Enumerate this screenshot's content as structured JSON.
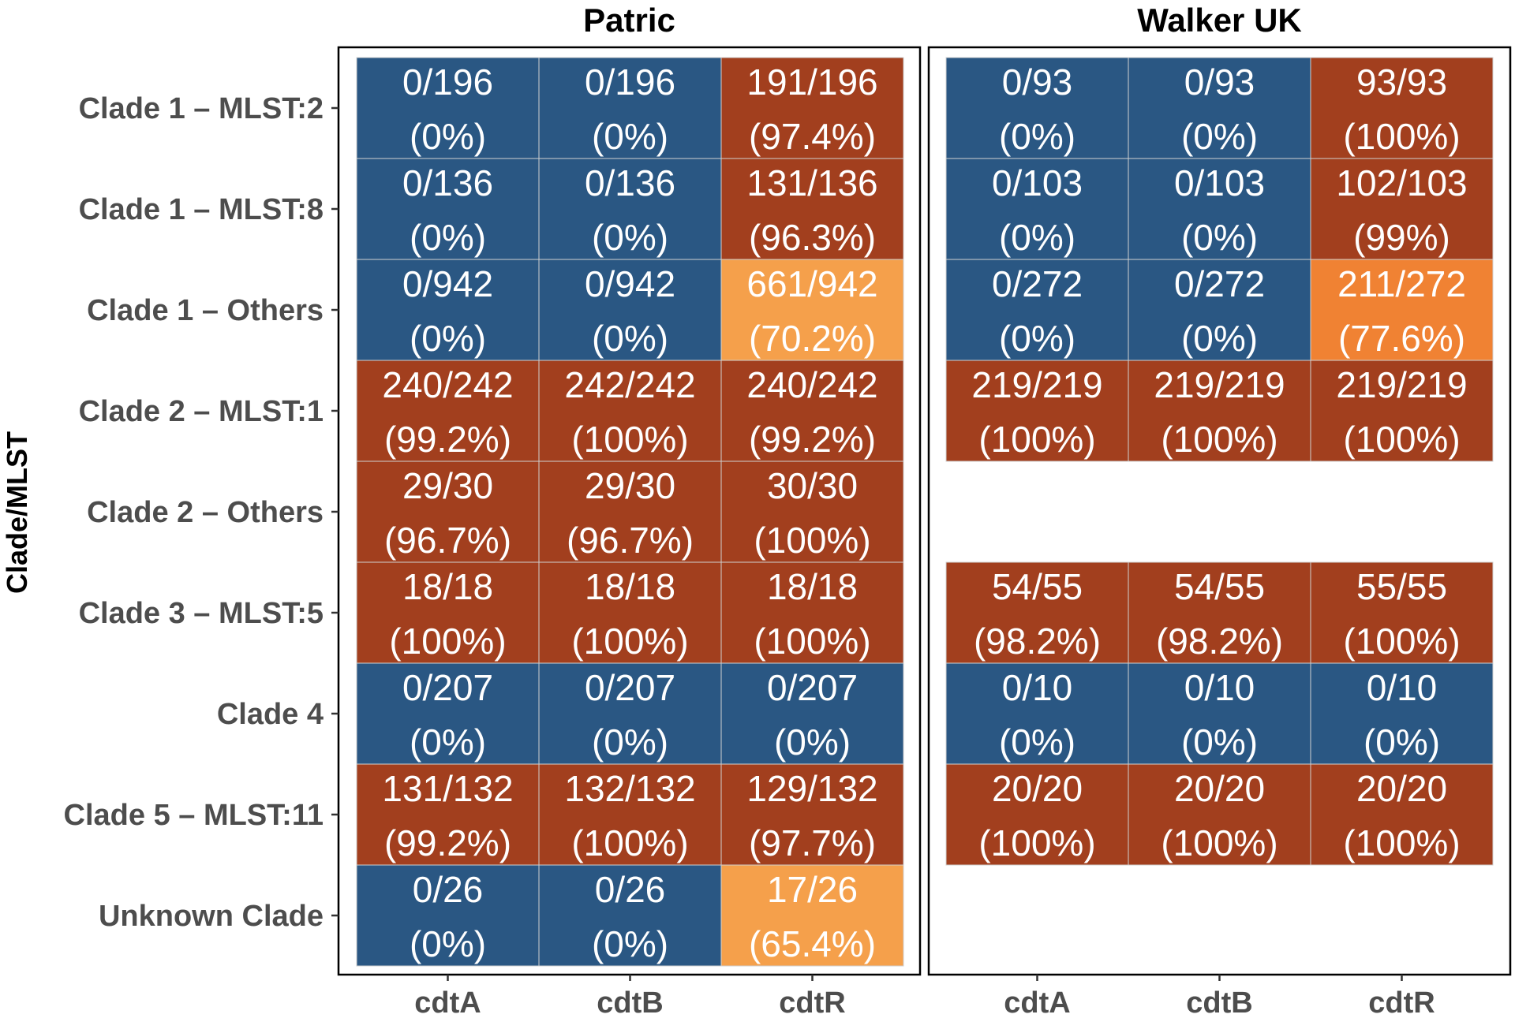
{
  "chart_data": {
    "type": "heatmap",
    "ylabel": "Clade/MLST",
    "xlabel": "",
    "rows": [
      "Clade 1 – MLST:2",
      "Clade 1 – MLST:8",
      "Clade 1 – Others",
      "Clade 2 – MLST:1",
      "Clade 2 – Others",
      "Clade 3 – MLST:5",
      "Clade 4",
      "Clade 5 – MLST:11",
      "Unknown Clade"
    ],
    "columns": [
      "cdtA",
      "cdtB",
      "cdtR"
    ],
    "colors": {
      "zero": "#2a5783",
      "high": "#a23f1e",
      "mid": "#f08233",
      "low": "#f5a04b",
      "gridline": "#d0d0d0",
      "panel_border": "#000000"
    },
    "facets": [
      {
        "title": "Patric",
        "cells": [
          [
            {
              "count": "0/196",
              "pct": "(0%)",
              "value": 0
            },
            {
              "count": "0/196",
              "pct": "(0%)",
              "value": 0
            },
            {
              "count": "191/196",
              "pct": "(97.4%)",
              "value": 97.4
            }
          ],
          [
            {
              "count": "0/136",
              "pct": "(0%)",
              "value": 0
            },
            {
              "count": "0/136",
              "pct": "(0%)",
              "value": 0
            },
            {
              "count": "131/136",
              "pct": "(96.3%)",
              "value": 96.3
            }
          ],
          [
            {
              "count": "0/942",
              "pct": "(0%)",
              "value": 0
            },
            {
              "count": "0/942",
              "pct": "(0%)",
              "value": 0
            },
            {
              "count": "661/942",
              "pct": "(70.2%)",
              "value": 70.2
            }
          ],
          [
            {
              "count": "240/242",
              "pct": "(99.2%)",
              "value": 99.2
            },
            {
              "count": "242/242",
              "pct": "(100%)",
              "value": 100
            },
            {
              "count": "240/242",
              "pct": "(99.2%)",
              "value": 99.2
            }
          ],
          [
            {
              "count": "29/30",
              "pct": "(96.7%)",
              "value": 96.7
            },
            {
              "count": "29/30",
              "pct": "(96.7%)",
              "value": 96.7
            },
            {
              "count": "30/30",
              "pct": "(100%)",
              "value": 100
            }
          ],
          [
            {
              "count": "18/18",
              "pct": "(100%)",
              "value": 100
            },
            {
              "count": "18/18",
              "pct": "(100%)",
              "value": 100
            },
            {
              "count": "18/18",
              "pct": "(100%)",
              "value": 100
            }
          ],
          [
            {
              "count": "0/207",
              "pct": "(0%)",
              "value": 0
            },
            {
              "count": "0/207",
              "pct": "(0%)",
              "value": 0
            },
            {
              "count": "0/207",
              "pct": "(0%)",
              "value": 0
            }
          ],
          [
            {
              "count": "131/132",
              "pct": "(99.2%)",
              "value": 99.2
            },
            {
              "count": "132/132",
              "pct": "(100%)",
              "value": 100
            },
            {
              "count": "129/132",
              "pct": "(97.7%)",
              "value": 97.7
            }
          ],
          [
            {
              "count": "0/26",
              "pct": "(0%)",
              "value": 0
            },
            {
              "count": "0/26",
              "pct": "(0%)",
              "value": 0
            },
            {
              "count": "17/26",
              "pct": "(65.4%)",
              "value": 65.4
            }
          ]
        ]
      },
      {
        "title": "Walker UK",
        "cells": [
          [
            {
              "count": "0/93",
              "pct": "(0%)",
              "value": 0
            },
            {
              "count": "0/93",
              "pct": "(0%)",
              "value": 0
            },
            {
              "count": "93/93",
              "pct": "(100%)",
              "value": 100
            }
          ],
          [
            {
              "count": "0/103",
              "pct": "(0%)",
              "value": 0
            },
            {
              "count": "0/103",
              "pct": "(0%)",
              "value": 0
            },
            {
              "count": "102/103",
              "pct": "(99%)",
              "value": 99
            }
          ],
          [
            {
              "count": "0/272",
              "pct": "(0%)",
              "value": 0
            },
            {
              "count": "0/272",
              "pct": "(0%)",
              "value": 0
            },
            {
              "count": "211/272",
              "pct": "(77.6%)",
              "value": 77.6
            }
          ],
          [
            {
              "count": "219/219",
              "pct": "(100%)",
              "value": 100
            },
            {
              "count": "219/219",
              "pct": "(100%)",
              "value": 100
            },
            {
              "count": "219/219",
              "pct": "(100%)",
              "value": 100
            }
          ],
          null,
          [
            {
              "count": "54/55",
              "pct": "(98.2%)",
              "value": 98.2
            },
            {
              "count": "54/55",
              "pct": "(98.2%)",
              "value": 98.2
            },
            {
              "count": "55/55",
              "pct": "(100%)",
              "value": 100
            }
          ],
          [
            {
              "count": "0/10",
              "pct": "(0%)",
              "value": 0
            },
            {
              "count": "0/10",
              "pct": "(0%)",
              "value": 0
            },
            {
              "count": "0/10",
              "pct": "(0%)",
              "value": 0
            }
          ],
          [
            {
              "count": "20/20",
              "pct": "(100%)",
              "value": 100
            },
            {
              "count": "20/20",
              "pct": "(100%)",
              "value": 100
            },
            {
              "count": "20/20",
              "pct": "(100%)",
              "value": 100
            }
          ],
          null
        ]
      }
    ]
  }
}
